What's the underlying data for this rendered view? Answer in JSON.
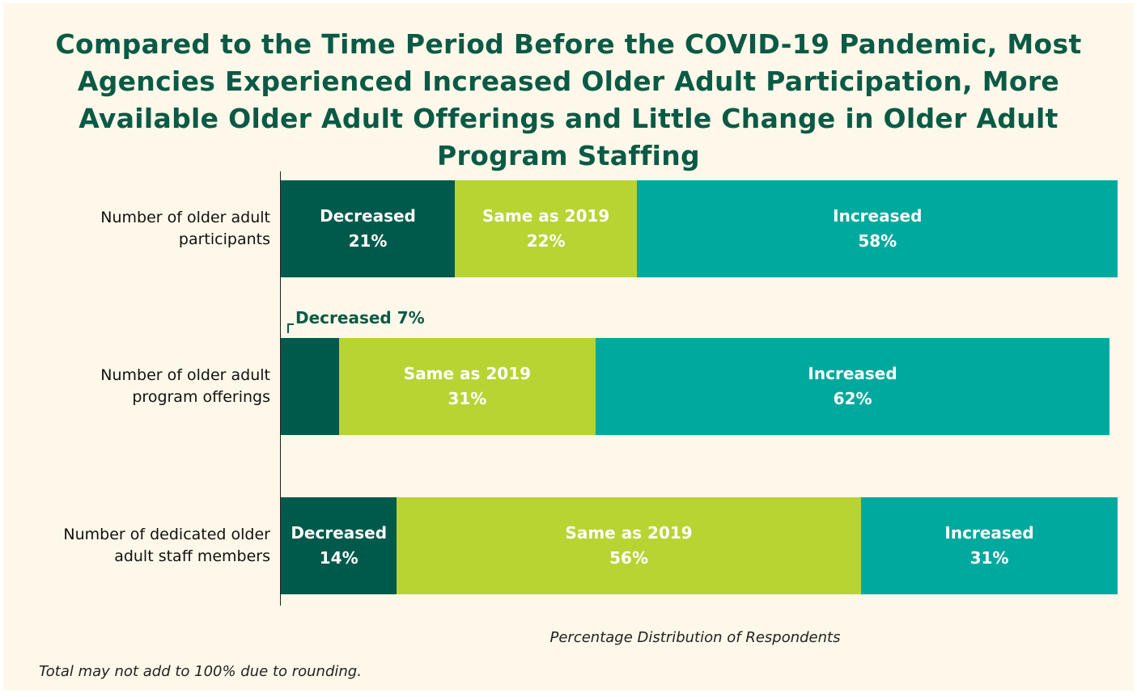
{
  "chart_data": {
    "type": "stacked_bar_horizontal",
    "title": "Compared to the Time Period Before the COVID-19 Pandemic, Most Agencies Experienced Increased Older Adult Participation, More Available Older Adult Offerings and Little Change in Older Adult Program Staffing",
    "categories": [
      "Number of older adult participants",
      "Number of older adult program offerings",
      "Number of dedicated older adult staff members"
    ],
    "series": [
      {
        "name": "Decreased",
        "color": "#005a4b",
        "values": [
          21,
          7,
          14
        ],
        "value_labels": [
          "21%",
          "7%",
          "14%"
        ]
      },
      {
        "name": "Same as 2019",
        "color": "#b8d432",
        "values": [
          22,
          31,
          56
        ],
        "value_labels": [
          "22%",
          "31%",
          "56%"
        ]
      },
      {
        "name": "Increased",
        "color": "#00a99d",
        "values": [
          58,
          62,
          31
        ],
        "value_labels": [
          "58%",
          "62%",
          "31%"
        ]
      }
    ],
    "xlim": [
      0,
      100
    ],
    "xlabel": "Percentage Distribution of Respondents",
    "footnote": "Total may not add to 100% due to rounding."
  }
}
